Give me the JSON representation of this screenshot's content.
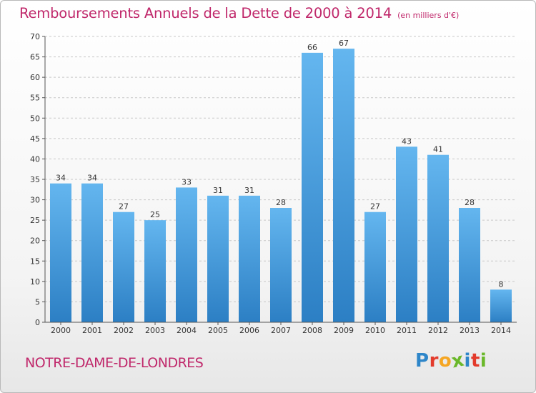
{
  "colors": {
    "title": "#c0286b",
    "bar_top": "#64b6ef",
    "bar_bottom": "#2c7fc4",
    "axis": "#555555",
    "grid": "#c8c8c8"
  },
  "header": {
    "title": "Remboursements Annuels de la Dette de 2000 à 2014",
    "subtitle": "(en milliers d'€)"
  },
  "footer": {
    "commune": "NOTRE-DAME-DE-LONDRES",
    "logo_letters": [
      "P",
      "r",
      "o",
      "x",
      "i",
      "t",
      "i"
    ],
    "logo_colors": [
      "#2e86c9",
      "#e33b2c",
      "#f5a623",
      "#6ab82a",
      "#2e86c9",
      "#e33b2c",
      "#6ab82a"
    ]
  },
  "chart_data": {
    "type": "bar",
    "title": "Remboursements Annuels de la Dette de 2000 à 2014",
    "unit": "(en milliers d'€)",
    "categories": [
      "2000",
      "2001",
      "2002",
      "2003",
      "2004",
      "2005",
      "2006",
      "2007",
      "2008",
      "2009",
      "2010",
      "2011",
      "2012",
      "2013",
      "2014"
    ],
    "values": [
      34,
      34,
      27,
      25,
      33,
      31,
      31,
      28,
      66,
      67,
      27,
      43,
      41,
      28,
      8
    ],
    "yticks": [
      "0",
      "5",
      "10",
      "15",
      "20",
      "25",
      "30",
      "35",
      "40",
      "45",
      "50",
      "55",
      "60",
      "65",
      "70"
    ],
    "ylim": [
      0,
      70
    ],
    "xlabel": "",
    "ylabel": "",
    "grid": true,
    "legend": "none"
  }
}
